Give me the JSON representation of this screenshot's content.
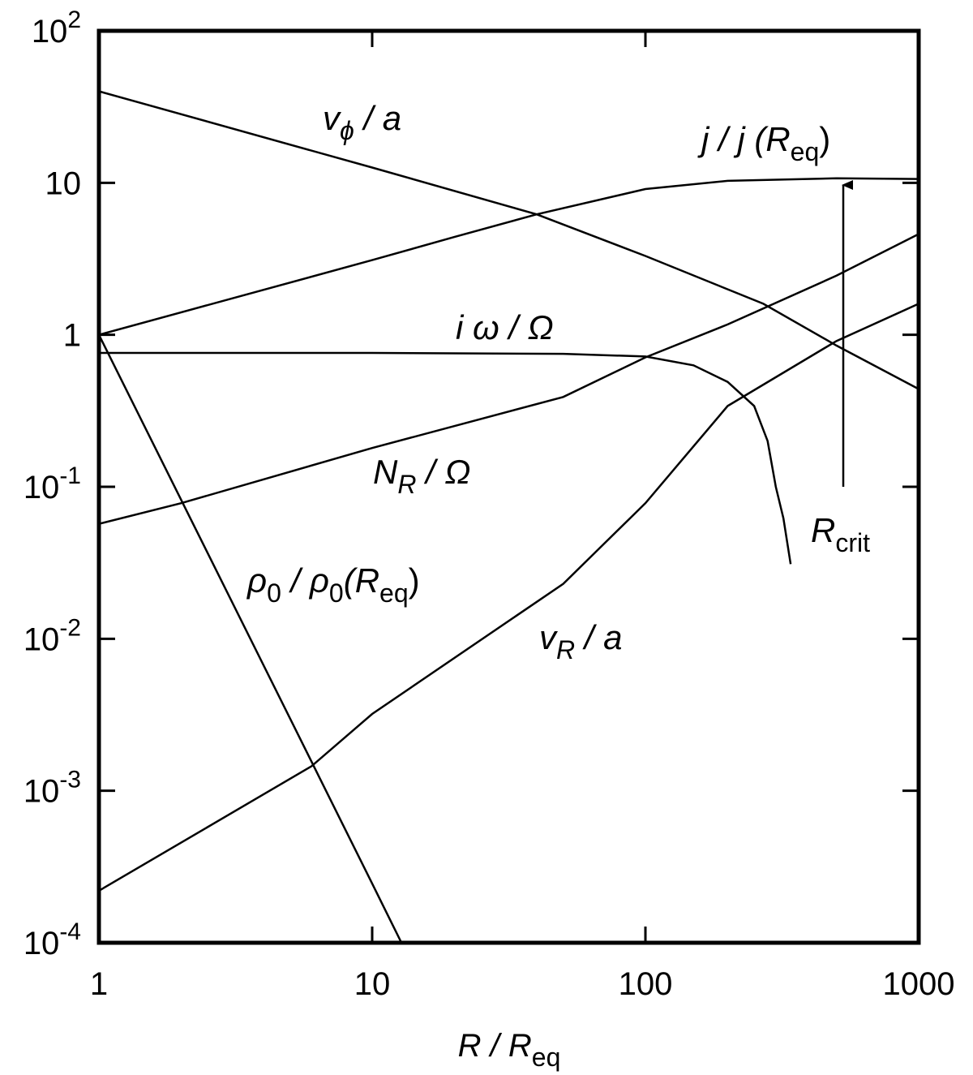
{
  "chart_data": {
    "type": "line",
    "xscale": "log",
    "yscale": "log",
    "xlim": [
      1,
      1000
    ],
    "ylim": [
      0.0001,
      100
    ],
    "xticks": [
      1,
      10,
      100,
      1000
    ],
    "yticks": [
      {
        "value": 100,
        "label": "10",
        "exp": "2"
      },
      10,
      1,
      {
        "value": 0.1,
        "label": "10",
        "exp": "-1"
      },
      {
        "value": 0.01,
        "label": "10",
        "exp": "-2"
      },
      {
        "value": 0.001,
        "label": "10",
        "exp": "-3"
      },
      {
        "value": 0.0001,
        "label": "10",
        "exp": "-4"
      }
    ],
    "xlabel": [
      "R / R",
      "eq"
    ],
    "annotations": [
      [
        "v",
        "ϕ",
        " / a"
      ],
      [
        "j / j (R",
        "eq",
        ")"
      ],
      [
        "i ω / Ω"
      ],
      [
        "N",
        "R",
        " / Ω"
      ],
      [
        "R",
        "crit"
      ],
      [
        "ρ",
        "0",
        " / ρ",
        "0",
        "(R",
        "eq",
        ")"
      ],
      [
        "v",
        "R",
        " / a"
      ]
    ],
    "series": [
      {
        "color": "#000000",
        "x": [
          1,
          10,
          40,
          100,
          270,
          500,
          1000
        ],
        "values": [
          40,
          12.6,
          6.2,
          3.3,
          1.6,
          0.85,
          0.44
        ]
      },
      {
        "color": "#000000",
        "x": [
          1,
          10,
          20,
          40,
          100,
          200,
          500,
          1000
        ],
        "values": [
          1,
          3.1,
          4.4,
          6.2,
          9.1,
          10.3,
          10.7,
          10.6
        ]
      },
      {
        "color": "#000000",
        "x": [
          1,
          10,
          50,
          100,
          150,
          200,
          250,
          280,
          300,
          320,
          340
        ],
        "values": [
          0.76,
          0.76,
          0.75,
          0.72,
          0.63,
          0.49,
          0.34,
          0.2,
          0.1,
          0.062,
          0.031
        ]
      },
      {
        "color": "#000000",
        "x": [
          1,
          2,
          10,
          50,
          100,
          200,
          500,
          1000
        ],
        "values": [
          0.057,
          0.078,
          0.18,
          0.39,
          0.71,
          1.17,
          2.45,
          4.6
        ]
      },
      {
        "color": "#000000",
        "x": [
          1,
          6,
          10,
          50,
          100,
          200,
          500,
          1000
        ],
        "values": [
          0.00022,
          0.00145,
          0.0032,
          0.023,
          0.078,
          0.34,
          0.91,
          1.6
        ]
      },
      {
        "color": "#000000",
        "x": [
          1,
          2,
          5,
          10,
          12.8
        ],
        "values": [
          1,
          0.082,
          0.003,
          0.000245,
          0.0001
        ]
      }
    ]
  }
}
